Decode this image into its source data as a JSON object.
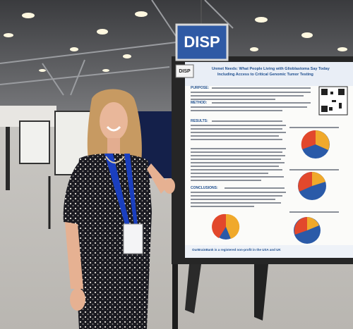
{
  "sign": {
    "label": "DISP"
  },
  "small_sign": {
    "label": "DISP"
  },
  "poster": {
    "title_line_1": "Unmet Needs: What People Living with Glioblastoma Say Today",
    "title_line_2": "Including Access to Critical Genomic Tumor Testing",
    "sections": [
      "PURPOSE:",
      "METHOD:",
      "RESULTS:",
      "CONCLUSIONS:"
    ],
    "footer": "OurBrainBank is a registered non-profit in the USA and UK"
  }
}
